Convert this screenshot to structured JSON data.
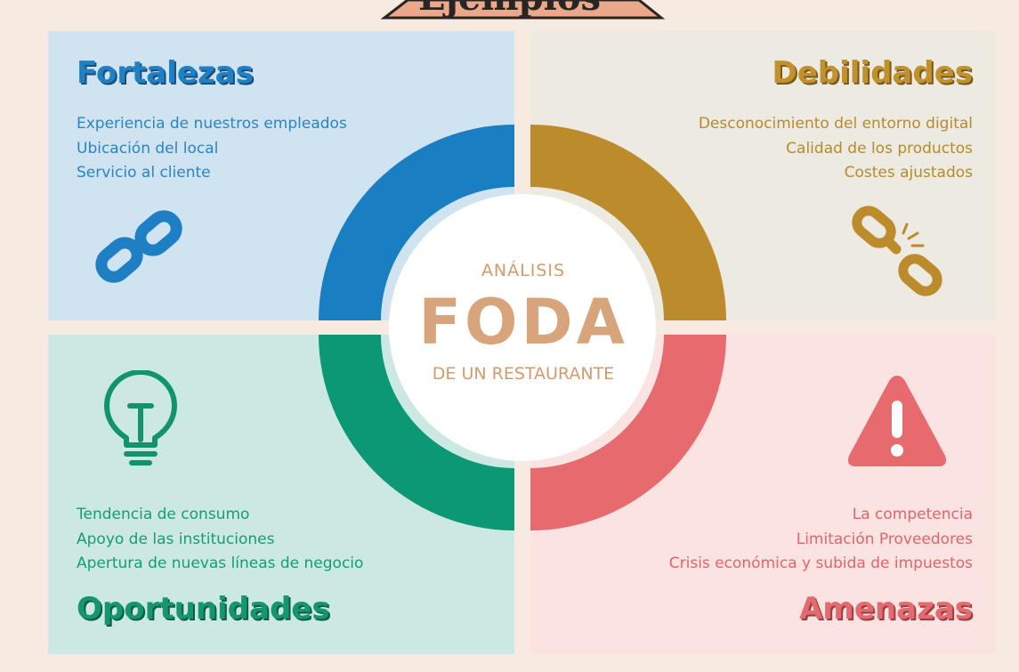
{
  "header": {
    "banner_text": "Ejemplos"
  },
  "center": {
    "top_label": "ANÁLISIS",
    "main_label": "FODA",
    "bottom_label": "DE UN RESTAURANTE"
  },
  "quadrants": {
    "fortalezas": {
      "title": "Fortalezas",
      "items": [
        "Experiencia de nuestros empleados",
        "Ubicación del local",
        "Servicio al cliente"
      ],
      "color": "#1f80c5",
      "background": "#cfe3f1",
      "icon": "link-chain-icon"
    },
    "debilidades": {
      "title": "Debilidades",
      "items": [
        "Desconocimiento del entorno digital",
        "Calidad de los productos",
        "Costes ajustados"
      ],
      "color": "#c1902f",
      "background": "#eceae1",
      "icon": "broken-chain-icon"
    },
    "oportunidades": {
      "title": "Oportunidades",
      "items": [
        "Tendencia de consumo",
        "Apoyo de las instituciones",
        "Apertura de nuevas líneas de negocio"
      ],
      "color": "#15966c",
      "background": "#cbe9e2",
      "icon": "lightbulb-icon"
    },
    "amenazas": {
      "title": "Amenazas",
      "items": [
        "La competencia",
        "Limitación Proveedores",
        "Crisis económica y subida de impuestos"
      ],
      "color": "#e26b6f",
      "background": "#fbe3e2",
      "icon": "warning-triangle-icon"
    }
  }
}
